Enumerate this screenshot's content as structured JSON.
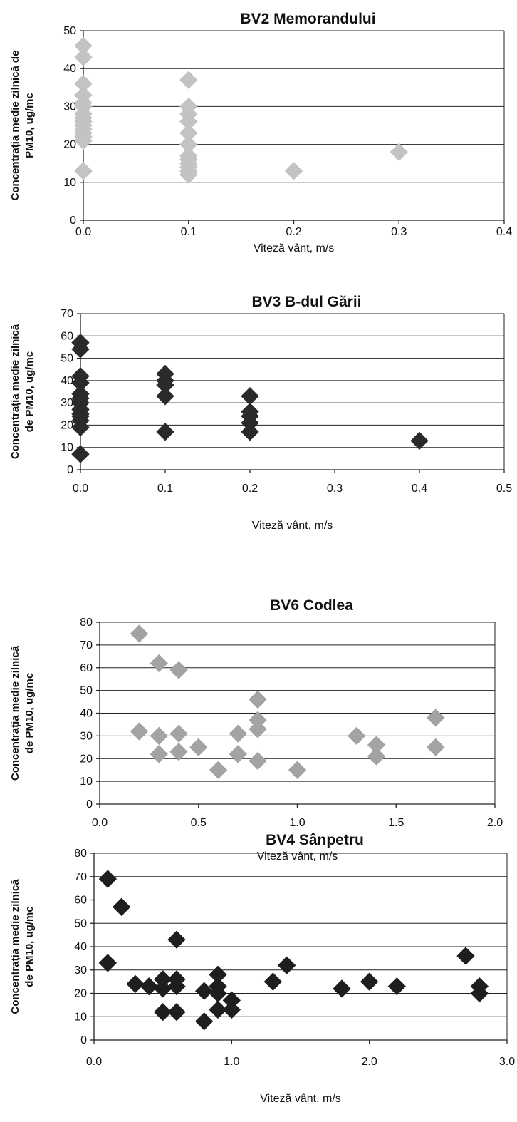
{
  "chart_data": [
    {
      "type": "scatter",
      "title": "BV2 Memorandului",
      "ylabel_lines": [
        "Concentrația medie zilnică de",
        "PM10, ug/mc"
      ],
      "xlabel": "Viteză vânt, m/s",
      "xlim": [
        0,
        0.4
      ],
      "ylim": [
        0,
        50
      ],
      "x_ticks": [
        "0.0",
        "0.1",
        "0.2",
        "0.3",
        "0.4"
      ],
      "y_ticks": [
        "0",
        "10",
        "20",
        "30",
        "40",
        "50"
      ],
      "grid": true,
      "marker_color": "#c3c3c3",
      "x": [
        0,
        0,
        0,
        0,
        0,
        0,
        0,
        0,
        0,
        0,
        0,
        0,
        0,
        0,
        0,
        0,
        0,
        0.1,
        0.1,
        0.1,
        0.1,
        0.1,
        0.1,
        0.1,
        0.1,
        0.1,
        0.1,
        0.1,
        0.1,
        0.2,
        0.3
      ],
      "y": [
        46,
        43,
        36,
        33,
        31,
        30,
        28,
        27,
        26,
        25,
        24,
        23,
        22,
        21,
        21,
        13,
        13,
        37,
        30,
        28,
        26,
        23,
        20,
        17,
        16,
        15,
        14,
        13,
        12,
        13,
        18
      ]
    },
    {
      "type": "scatter",
      "title": "BV3 B-dul Gării",
      "ylabel_lines": [
        "Concentrația medie zilnică",
        "de PM10, ug/mc"
      ],
      "xlabel": "Viteză vânt, m/s",
      "xlim": [
        0,
        0.5
      ],
      "ylim": [
        0,
        70
      ],
      "x_ticks": [
        "0.0",
        "0.1",
        "0.2",
        "0.3",
        "0.4",
        "0.5"
      ],
      "y_ticks": [
        "0",
        "10",
        "20",
        "30",
        "40",
        "50",
        "60",
        "70"
      ],
      "grid": true,
      "marker_color": "#2a2a2a",
      "x": [
        0,
        0,
        0,
        0,
        0,
        0,
        0,
        0,
        0,
        0,
        0,
        0,
        0,
        0.1,
        0.1,
        0.1,
        0.1,
        0.1,
        0.2,
        0.2,
        0.2,
        0.2,
        0.2,
        0.4
      ],
      "y": [
        57,
        54,
        42,
        39,
        34,
        32,
        30,
        27,
        25,
        24,
        22,
        19,
        7,
        43,
        40,
        38,
        33,
        17,
        33,
        26,
        24,
        21,
        17,
        13
      ]
    },
    {
      "type": "scatter",
      "title": "BV6 Codlea",
      "ylabel_lines": [
        "Concentrația medie zilnică",
        "de PM10, ug/mc"
      ],
      "xlabel": "Viteză vânt, m/s",
      "xlim": [
        0,
        2.0
      ],
      "ylim": [
        0,
        80
      ],
      "x_ticks": [
        "0.0",
        "0.5",
        "1.0",
        "1.5",
        "2.0"
      ],
      "y_ticks": [
        "0",
        "10",
        "20",
        "30",
        "40",
        "50",
        "60",
        "70",
        "80"
      ],
      "grid": true,
      "marker_color": "#a3a3a3",
      "x": [
        0.2,
        0.2,
        0.3,
        0.3,
        0.3,
        0.4,
        0.4,
        0.4,
        0.5,
        0.6,
        0.7,
        0.7,
        0.8,
        0.8,
        0.8,
        0.8,
        1.0,
        1.3,
        1.4,
        1.4,
        1.7,
        1.7
      ],
      "y": [
        75,
        32,
        62,
        30,
        22,
        59,
        31,
        23,
        25,
        15,
        31,
        22,
        46,
        37,
        33,
        19,
        15,
        30,
        26,
        21,
        38,
        25
      ]
    },
    {
      "type": "scatter",
      "title": "BV4 Sânpetru",
      "ylabel_lines": [
        "Concentrația medie zilnică",
        "de PM10, ug/mc"
      ],
      "xlabel": "Viteză vânt, m/s",
      "xlim": [
        0,
        3.0
      ],
      "ylim": [
        0,
        80
      ],
      "x_ticks": [
        "0.0",
        "1.0",
        "2.0",
        "3.0"
      ],
      "y_ticks": [
        "0",
        "10",
        "20",
        "30",
        "40",
        "50",
        "60",
        "70",
        "80"
      ],
      "grid": true,
      "marker_color": "#1e1e1e",
      "x": [
        0.1,
        0.1,
        0.2,
        0.3,
        0.4,
        0.5,
        0.5,
        0.5,
        0.6,
        0.6,
        0.6,
        0.6,
        0.8,
        0.8,
        0.9,
        0.9,
        0.9,
        0.9,
        1.0,
        1.0,
        1.3,
        1.4,
        1.8,
        2.0,
        2.2,
        2.7,
        2.8,
        2.8
      ],
      "y": [
        69,
        33,
        57,
        24,
        23,
        26,
        22,
        12,
        43,
        26,
        23,
        12,
        21,
        8,
        28,
        23,
        20,
        13,
        17,
        13,
        25,
        32,
        22,
        25,
        23,
        36,
        23,
        20
      ]
    }
  ]
}
